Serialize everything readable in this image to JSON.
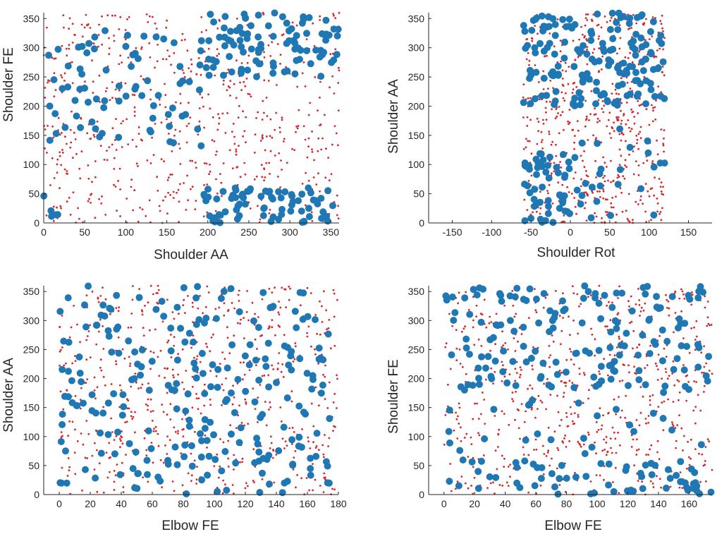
{
  "figure": {
    "red_color": "#d62728",
    "blue_color": "#1f77b4"
  },
  "chart_data": [
    {
      "type": "scatter",
      "xlabel": "Shoulder AA",
      "ylabel": "Shoulder FE",
      "xlim": [
        0,
        360
      ],
      "ylim": [
        0,
        360
      ],
      "xticks": [
        0,
        50,
        100,
        150,
        200,
        250,
        300,
        350
      ],
      "yticks": [
        0,
        50,
        100,
        150,
        200,
        250,
        300,
        350
      ],
      "blue_clusters": [
        {
          "x": [
            200,
            360
          ],
          "y": [
            250,
            360
          ],
          "n": 95
        },
        {
          "x": [
            195,
            360
          ],
          "y": [
            0,
            60
          ],
          "n": 75
        },
        {
          "x": [
            0,
            200
          ],
          "y": [
            130,
            340
          ],
          "n": 75
        },
        {
          "x": [
            0,
            20
          ],
          "y": [
            0,
            50
          ],
          "n": 5
        }
      ],
      "red_count": 650
    },
    {
      "type": "scatter",
      "xlabel": "Shoulder Rot",
      "ylabel": "Shoulder AA",
      "xlim": [
        -180,
        180
      ],
      "ylim": [
        0,
        360
      ],
      "xticks": [
        -150,
        -100,
        -50,
        0,
        50,
        100,
        150
      ],
      "yticks": [
        0,
        50,
        100,
        150,
        200,
        250,
        300,
        350
      ],
      "blue_clusters": [
        {
          "x": [
            -60,
            120
          ],
          "y": [
            200,
            360
          ],
          "n": 160
        },
        {
          "x": [
            -60,
            0
          ],
          "y": [
            0,
            120
          ],
          "n": 55
        },
        {
          "x": [
            0,
            120
          ],
          "y": [
            0,
            200
          ],
          "n": 25
        }
      ],
      "red_count": 600
    },
    {
      "type": "scatter",
      "xlabel": "Elbow FE",
      "ylabel": "Shoulder AA",
      "xlim": [
        -10,
        180
      ],
      "ylim": [
        0,
        360
      ],
      "xticks": [
        0,
        20,
        40,
        60,
        80,
        100,
        120,
        140,
        160,
        180
      ],
      "yticks": [
        0,
        50,
        100,
        150,
        200,
        250,
        300,
        350
      ],
      "blue_clusters": [
        {
          "x": [
            0,
            175
          ],
          "y": [
            0,
            360
          ],
          "n": 240
        }
      ],
      "red_count": 650
    },
    {
      "type": "scatter",
      "xlabel": "Elbow FE",
      "ylabel": "Shoulder FE",
      "xlim": [
        -10,
        175
      ],
      "ylim": [
        0,
        360
      ],
      "xticks": [
        0,
        20,
        40,
        60,
        80,
        100,
        120,
        140,
        160
      ],
      "yticks": [
        0,
        50,
        100,
        150,
        200,
        250,
        300,
        350
      ],
      "blue_clusters": [
        {
          "x": [
            0,
            175
          ],
          "y": [
            180,
            360
          ],
          "n": 160
        },
        {
          "x": [
            0,
            175
          ],
          "y": [
            0,
            60
          ],
          "n": 65
        },
        {
          "x": [
            0,
            175
          ],
          "y": [
            60,
            180
          ],
          "n": 25
        }
      ],
      "red_count": 650
    }
  ]
}
